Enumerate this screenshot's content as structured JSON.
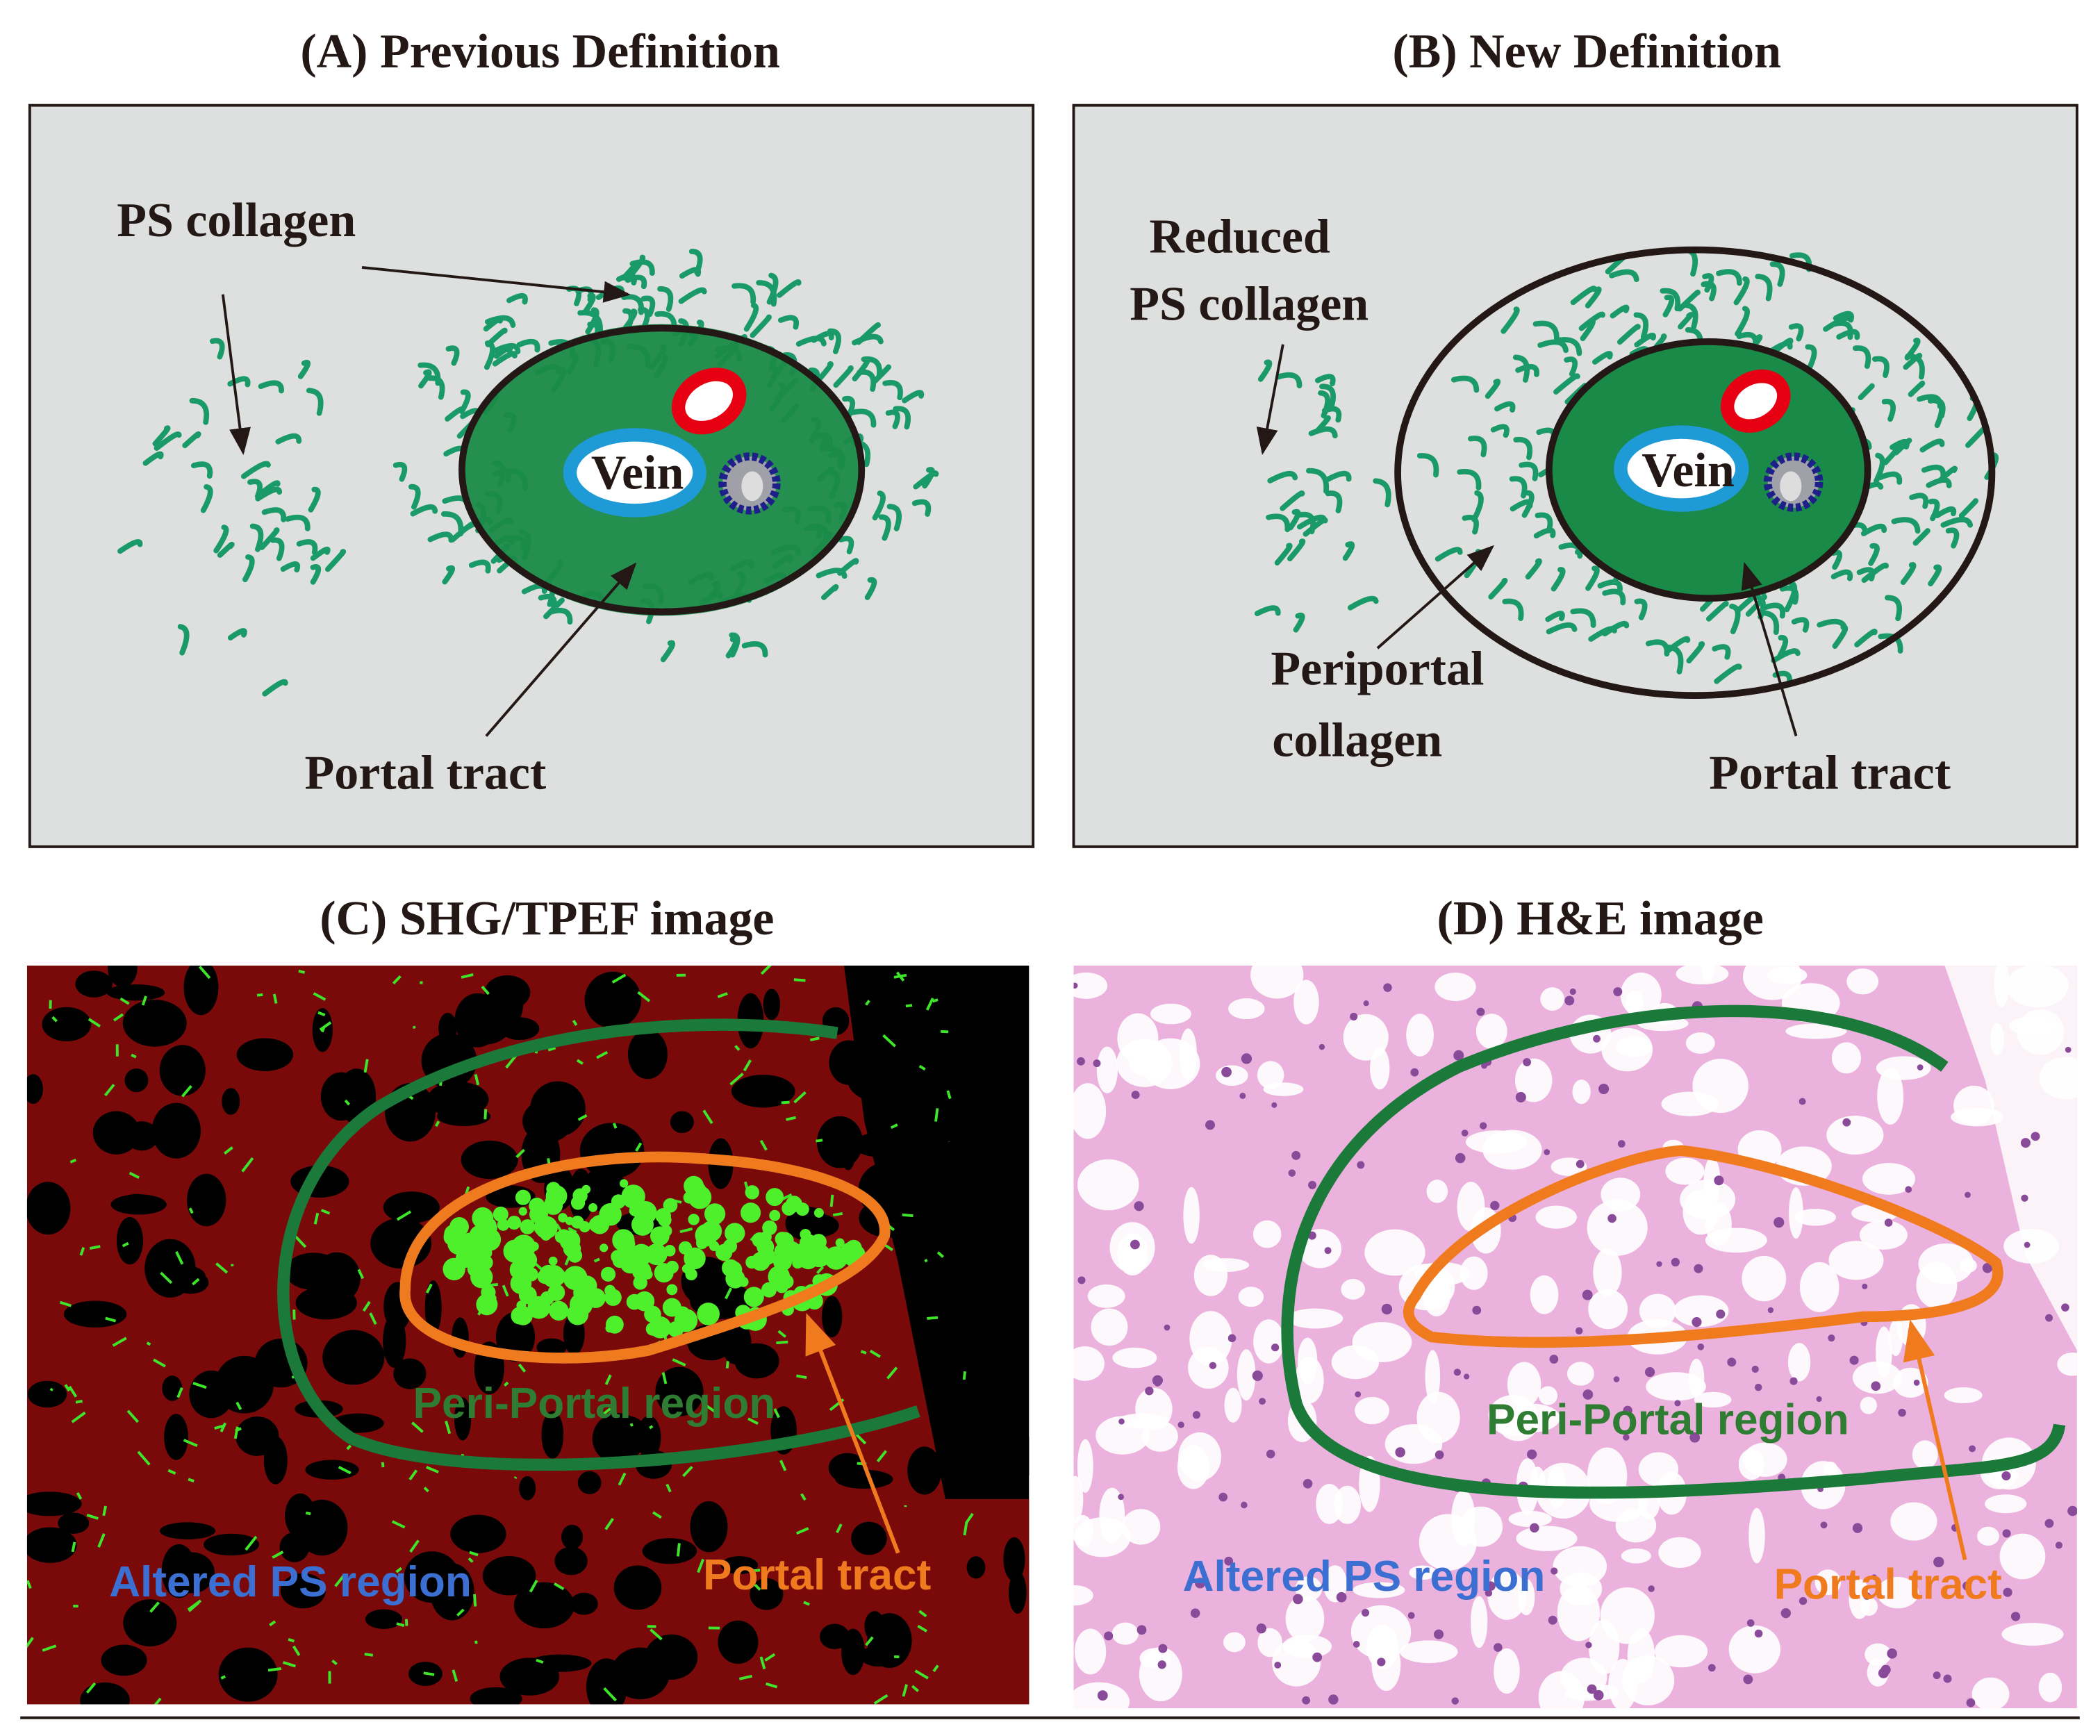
{
  "panels": [
    {
      "title": "(A) Previous Definition",
      "labels": [
        "PS collagen",
        "Vein",
        "Portal tract"
      ]
    },
    {
      "title": "(B) New Definition",
      "labels": [
        "Reduced",
        "PS collagen",
        "Vein",
        "Periportal",
        "collagen",
        "Portal tract"
      ]
    },
    {
      "title": "(C) SHG/TPEF image",
      "labels": [
        "Peri-Portal region",
        "Altered PS region",
        "Portal tract"
      ]
    },
    {
      "title": "(D) H&E image",
      "labels": [
        "Peri-Portal region",
        "Altered PS region",
        "Portal tract"
      ]
    }
  ]
}
